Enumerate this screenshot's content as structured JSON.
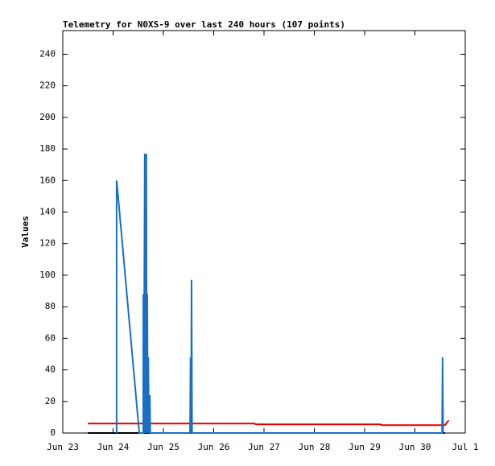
{
  "chart_data": {
    "type": "line",
    "title": "Telemetry for N0XS-9 over last 240 hours (107 points)",
    "ylabel": "Values",
    "xlim": [
      23,
      31
    ],
    "xticks": [
      {
        "value": 23,
        "label": "Jun 23"
      },
      {
        "value": 24,
        "label": "Jun 24"
      },
      {
        "value": 25,
        "label": "Jun 25"
      },
      {
        "value": 26,
        "label": "Jun 26"
      },
      {
        "value": 27,
        "label": "Jun 27"
      },
      {
        "value": 28,
        "label": "Jun 28"
      },
      {
        "value": 29,
        "label": "Jun 29"
      },
      {
        "value": 30,
        "label": "Jun 30"
      },
      {
        "value": 31,
        "label": "Jul 1"
      }
    ],
    "ylim": [
      0,
      255
    ],
    "yticks": [
      0,
      20,
      40,
      60,
      80,
      100,
      120,
      140,
      160,
      180,
      200,
      220,
      240
    ],
    "series": [
      {
        "color": "#000000",
        "x": [
          23.5,
          30.6
        ],
        "values": [
          0,
          0
        ]
      },
      {
        "color": "#e00000",
        "x": [
          23.5,
          26.8,
          26.85,
          29.3,
          29.35,
          30.6,
          30.63,
          30.66,
          30.67
        ],
        "values": [
          6,
          6,
          5.5,
          5.5,
          5,
          5,
          6.5,
          7.5,
          8
        ]
      },
      {
        "color": "#1a6fc4",
        "x": [
          24.07,
          24.07,
          24.1,
          24.52,
          24.6,
          24.6,
          24.61,
          24.63,
          24.64,
          24.66,
          24.67,
          24.68,
          24.69,
          24.7,
          24.71,
          24.73,
          24.74,
          25.53,
          25.54,
          25.55,
          25.56,
          25.57,
          30.54,
          30.55,
          30.56
        ],
        "values": [
          0,
          160,
          150,
          0,
          0,
          88,
          0,
          177,
          0,
          177,
          0,
          88,
          0,
          48,
          0,
          24,
          0,
          0,
          48,
          0,
          97,
          0,
          0,
          48,
          0
        ]
      }
    ]
  }
}
